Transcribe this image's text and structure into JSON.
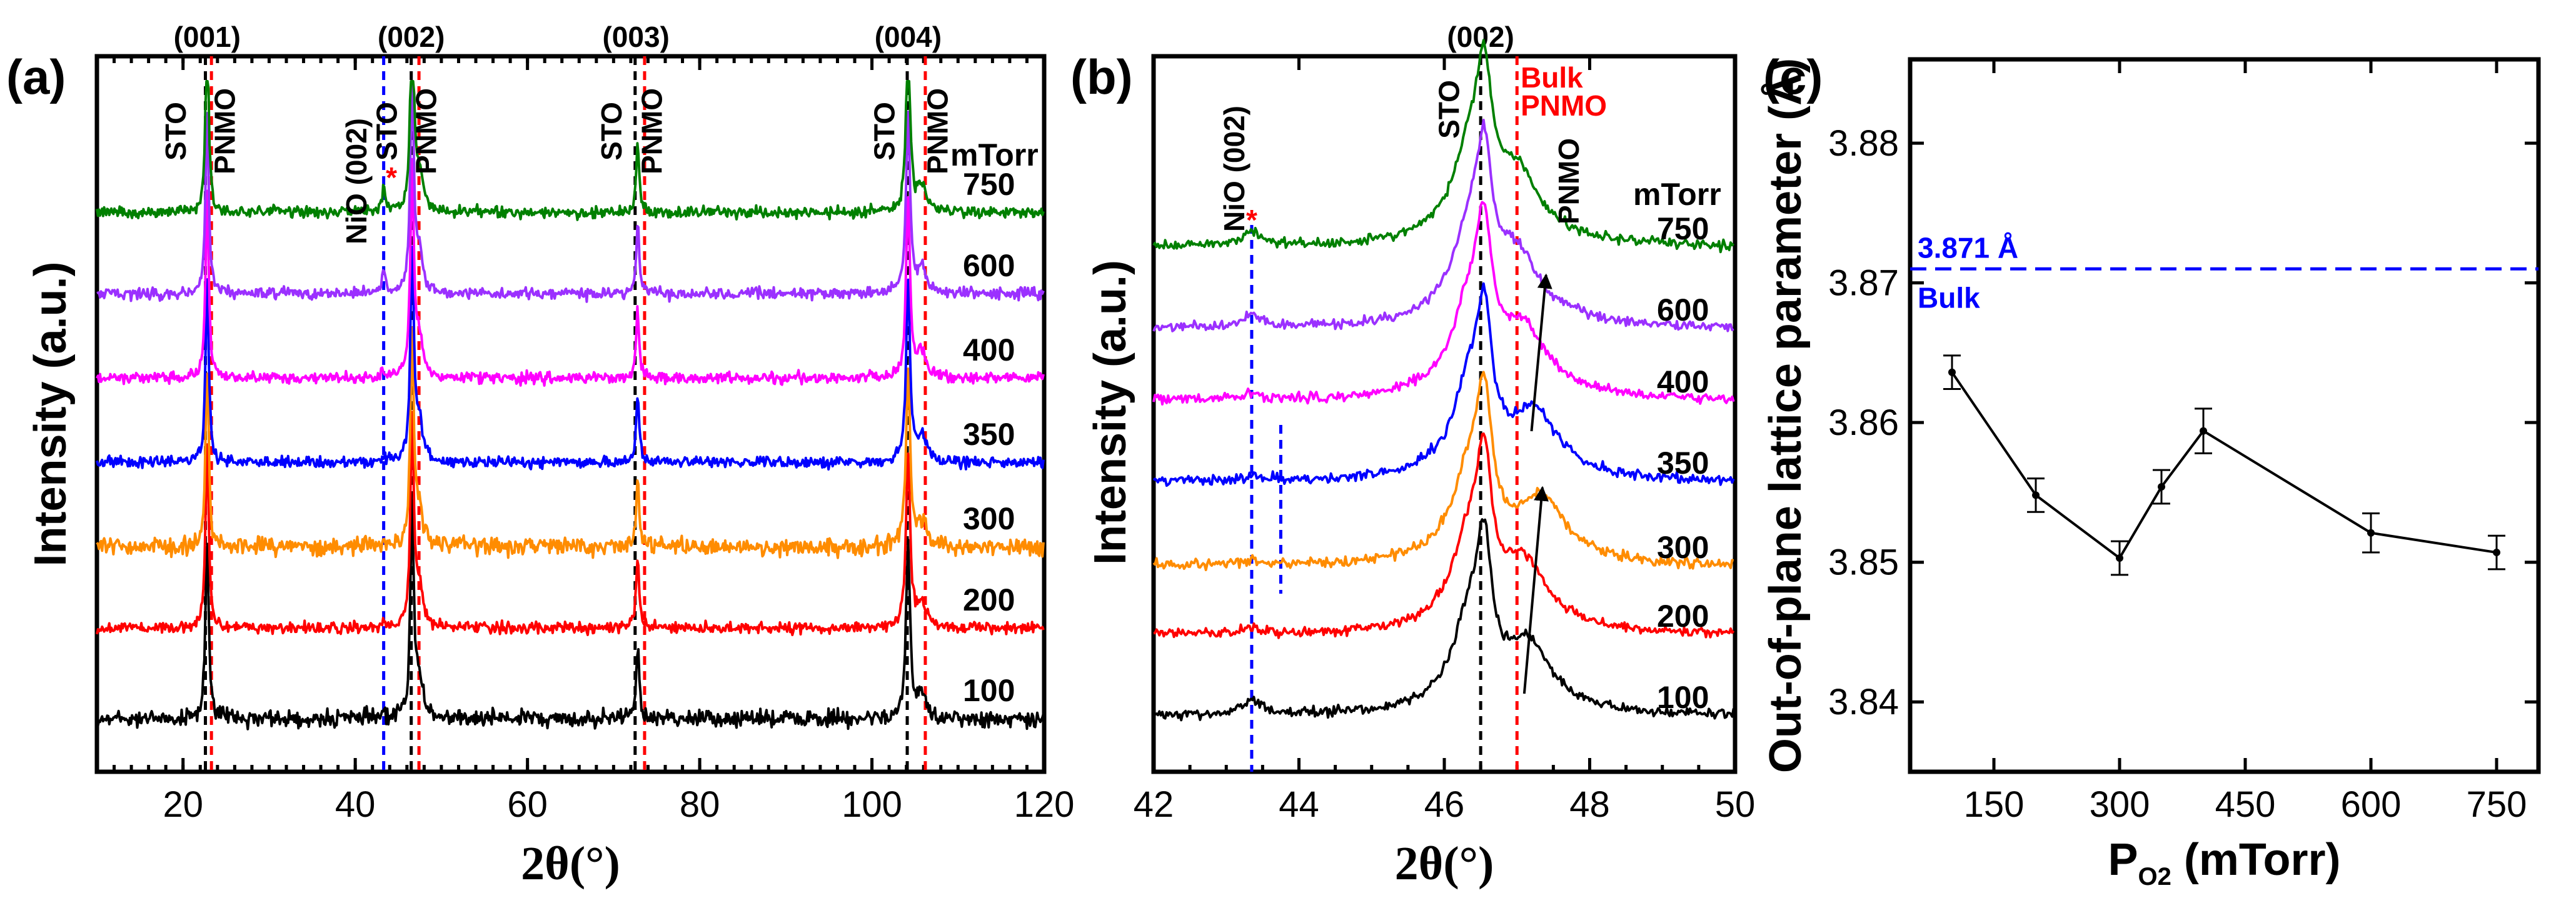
{
  "chart_data": [
    {
      "panel": "(a)",
      "type": "line",
      "xlabel": "2θ(°)",
      "ylabel": "Intensity (a.u.)",
      "xlim": [
        10,
        120
      ],
      "xticks": [
        "20",
        "40",
        "60",
        "80",
        "100",
        "120"
      ],
      "unit_label": "mTorr",
      "peak_labels": [
        "(001)",
        "(002)",
        "(003)",
        "(004)"
      ],
      "peaks_2theta": [
        22.8,
        46.5,
        72.6,
        104.2
      ],
      "annotations": [
        "STO",
        "PNMO",
        "NiO (002)",
        "STO",
        "PNMO",
        "STO",
        "PNMO",
        "STO",
        "PNMO",
        "STO",
        "PNMO",
        "*"
      ],
      "reference_lines": {
        "sto": [
          22.6,
          46.5,
          72.5,
          104.1
        ],
        "pnmo": [
          23.3,
          47.4,
          73.6,
          106.2
        ],
        "nio": [
          43.3
        ]
      },
      "series": [
        {
          "name": "100",
          "color": "#000000"
        },
        {
          "name": "200",
          "color": "#ff0000"
        },
        {
          "name": "300",
          "color": "#ff8c00"
        },
        {
          "name": "350",
          "color": "#0000ff"
        },
        {
          "name": "400",
          "color": "#ff00ff"
        },
        {
          "name": "600",
          "color": "#9b30ff"
        },
        {
          "name": "750",
          "color": "#008000"
        }
      ]
    },
    {
      "panel": "(b)",
      "type": "line",
      "xlabel": "2θ(°)",
      "ylabel": "Intensity (a.u.)",
      "xlim": [
        42,
        50
      ],
      "xticks": [
        "42",
        "44",
        "46",
        "48",
        "50"
      ],
      "unit_label": "mTorr",
      "title": "(002)",
      "annotations": [
        "NiO (002)",
        "STO",
        "PNMO",
        "*"
      ],
      "bulk_label": [
        "Bulk",
        "PNMO"
      ],
      "reference_lines": {
        "sto": 46.5,
        "bulk_pnmo": 47.0,
        "nio": 43.35,
        "nio_dotted": 43.75
      },
      "film_peak_2theta": [
        47.15,
        47.1,
        47.35,
        47.25,
        47.1,
        47.0,
        47.0
      ],
      "series": [
        {
          "name": "100",
          "color": "#000000"
        },
        {
          "name": "200",
          "color": "#ff0000"
        },
        {
          "name": "300",
          "color": "#ff8c00"
        },
        {
          "name": "350",
          "color": "#0000ff"
        },
        {
          "name": "400",
          "color": "#ff00ff"
        },
        {
          "name": "600",
          "color": "#9b30ff"
        },
        {
          "name": "750",
          "color": "#008000"
        }
      ]
    },
    {
      "panel": "(c)",
      "type": "line",
      "xlabel": "P",
      "xlabel_sub": "O2",
      "xlabel_unit": "(mTorr)",
      "ylabel": "Out-of-plane lattice parameter (Å)",
      "xlim": [
        50,
        800
      ],
      "ylim": [
        3.835,
        3.886
      ],
      "xticks": [
        "150",
        "300",
        "450",
        "600",
        "750"
      ],
      "yticks": [
        "3.84",
        "3.85",
        "3.86",
        "3.87",
        "3.88"
      ],
      "x": [
        100,
        200,
        300,
        350,
        400,
        600,
        750
      ],
      "y": [
        3.8636,
        3.8548,
        3.8503,
        3.8554,
        3.8594,
        3.8521,
        3.8507
      ],
      "yerr": [
        0.0012,
        0.0012,
        0.0012,
        0.0012,
        0.0016,
        0.0014,
        0.0012
      ],
      "bulk_value": 3.871,
      "bulk_value_label": "3.871 Å",
      "bulk_label": "Bulk"
    }
  ]
}
